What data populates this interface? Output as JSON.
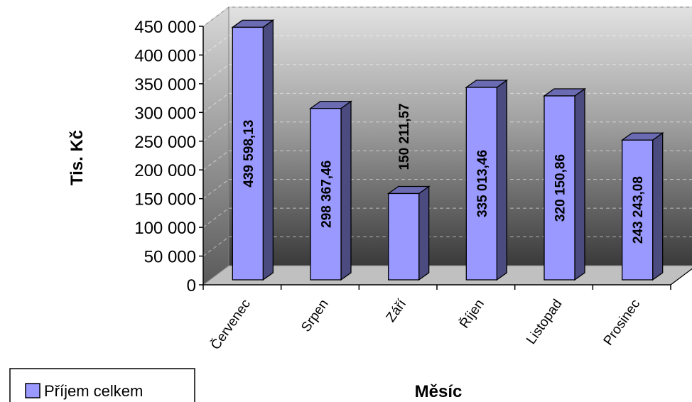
{
  "chart_data": {
    "type": "bar",
    "title": "",
    "xlabel": "Měsíc",
    "ylabel": "Tis. Kč",
    "categories": [
      "Červenec",
      "Srpen",
      "Září",
      "Říjen",
      "Listopad",
      "Prosinec"
    ],
    "series": [
      {
        "name": "Příjem celkem",
        "values": [
          439598.13,
          298367.46,
          150211.57,
          335013.46,
          320150.86,
          243243.08
        ],
        "labels": [
          "439 598,13",
          "298 367,46",
          "150 211,57",
          "335 013,46",
          "320 150,86",
          "243 243,08"
        ],
        "color": "#9999ff"
      }
    ],
    "ylim": [
      0,
      450000
    ],
    "yticks": [
      "0",
      "50 000",
      "100 000",
      "150 000",
      "200 000",
      "250 000",
      "300 000",
      "350 000",
      "400 000",
      "450 000"
    ],
    "grid": true,
    "legend": "bottom-left",
    "style": "3d-column"
  }
}
